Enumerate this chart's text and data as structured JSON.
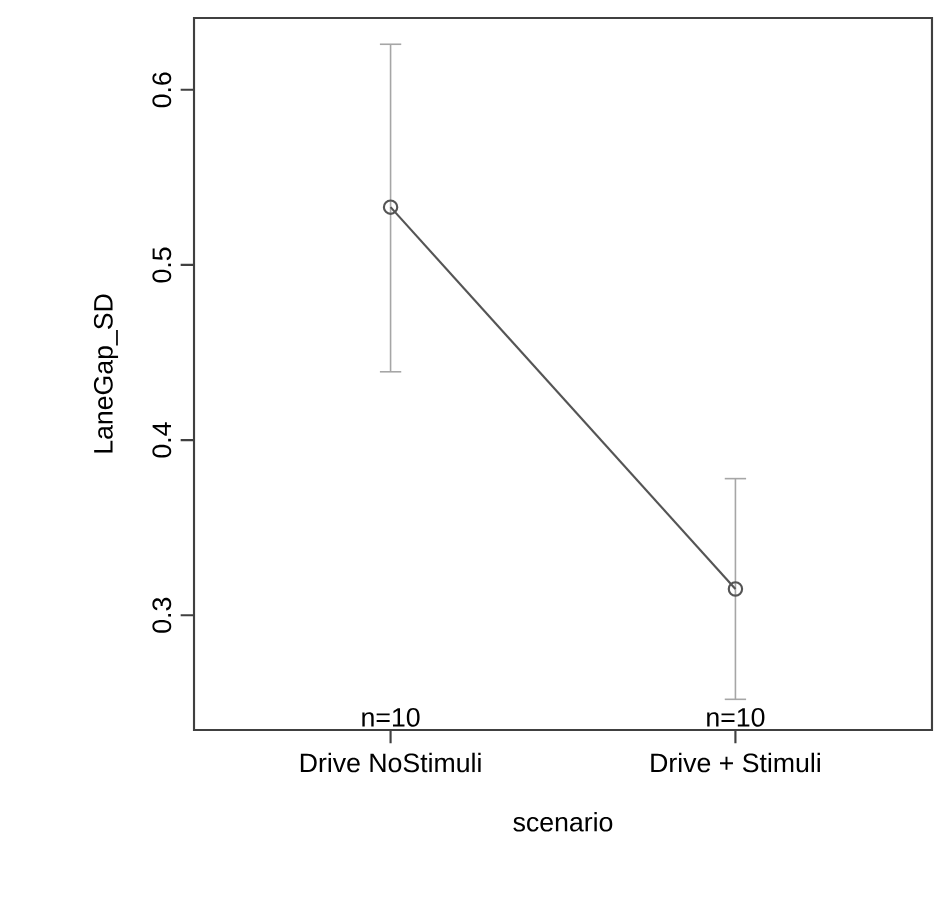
{
  "chart_data": {
    "type": "line",
    "xlabel": "scenario",
    "ylabel": "LaneGap_SD",
    "categories": [
      "Drive NoStimuli",
      "Drive + Stimuli"
    ],
    "series": [
      {
        "color": "#555555",
        "values": [
          0.533,
          0.315
        ],
        "errors": [
          [
            0.439,
            0.626
          ],
          [
            0.252,
            0.378
          ]
        ]
      }
    ],
    "ylim": [
      0.2345,
      0.641
    ],
    "yticks": [
      0.3,
      0.4,
      0.5,
      0.6
    ],
    "marker": "circle",
    "line_style": "solid",
    "grid": false,
    "annotations": [
      "n=10",
      "n=10"
    ]
  }
}
